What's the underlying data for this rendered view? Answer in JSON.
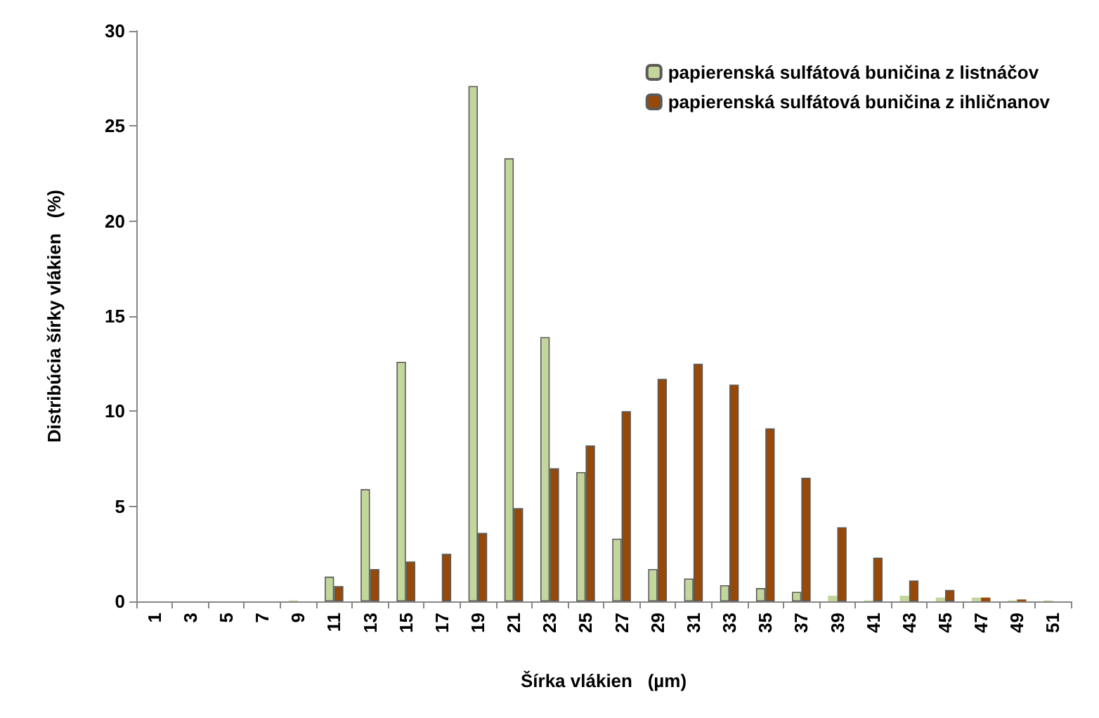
{
  "chart_data": {
    "type": "bar",
    "xlabel": "Šírka vlákien   (µm)",
    "ylabel": "Distribúcia šírky vlákien   (%)",
    "categories": [
      "1",
      "3",
      "5",
      "7",
      "9",
      "11",
      "13",
      "15",
      "17",
      "19",
      "21",
      "23",
      "25",
      "27",
      "29",
      "31",
      "33",
      "35",
      "37",
      "39",
      "41",
      "43",
      "45",
      "47",
      "49",
      "51"
    ],
    "series": [
      {
        "name": "papierenská sulfátová buničina z listnáčov",
        "color": "#c3d69b",
        "values": [
          0,
          0,
          0,
          0,
          0.05,
          1.3,
          5.9,
          12.6,
          0,
          27.1,
          23.3,
          13.9,
          6.8,
          3.3,
          1.7,
          1.2,
          0.85,
          0.7,
          0.5,
          0.3,
          0.05,
          0.3,
          0.2,
          0.2,
          0.05,
          0.05
        ]
      },
      {
        "name": "papierenská sulfátová buničina z ihličnanov",
        "color": "#984807",
        "values": [
          0,
          0,
          0,
          0,
          0,
          0.8,
          1.7,
          2.1,
          2.5,
          3.6,
          4.9,
          7.0,
          8.2,
          10.0,
          11.7,
          12.5,
          11.4,
          9.1,
          6.5,
          3.9,
          2.3,
          1.1,
          0.6,
          0.2,
          0.1,
          0
        ]
      }
    ],
    "ylim": [
      0,
      30
    ],
    "yticks": [
      0,
      5,
      10,
      15,
      20,
      25,
      30
    ],
    "grid": false,
    "legend": "top right"
  }
}
